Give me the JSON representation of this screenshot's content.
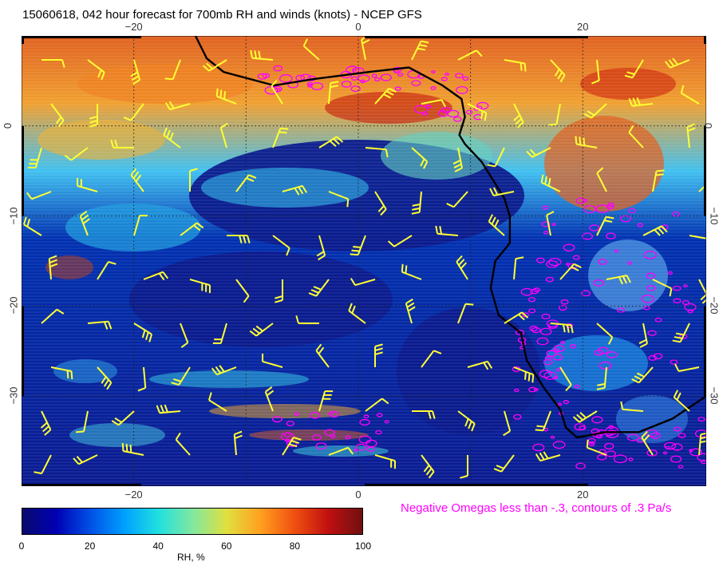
{
  "title": "15060618, 042 hour forecast for 700mb RH and winds (knots) - NCEP GFS",
  "map": {
    "lon_range": [
      -30,
      31
    ],
    "lat_range": [
      -40,
      10
    ],
    "lon_ticks": [
      {
        "value": -20,
        "label": "−20"
      },
      {
        "value": 0,
        "label": "0"
      },
      {
        "value": 20,
        "label": "20"
      }
    ],
    "lat_ticks": [
      {
        "value": 0,
        "label": "0"
      },
      {
        "value": -10,
        "label": "−10"
      },
      {
        "value": -20,
        "label": "−20"
      },
      {
        "value": -30,
        "label": "−30"
      }
    ],
    "gridlines": "dotted",
    "coastline": "Africa (west coast)",
    "wind_barb_color": "#ffff33",
    "omega_contour_color": "#ff00ff"
  },
  "legend": {
    "omega_note": "Negative Omegas less than -.3, contours of .3 Pa/s"
  },
  "colorbar": {
    "label": "RH, %",
    "ticks": [
      "0",
      "20",
      "40",
      "60",
      "80",
      "100"
    ],
    "min": 0,
    "max": 100,
    "colors": [
      "#0a0a6e",
      "#0000b4",
      "#0050e6",
      "#00a0ff",
      "#20e0e0",
      "#80e8a0",
      "#e0e040",
      "#ffa020",
      "#f05010",
      "#c01010",
      "#701010"
    ]
  }
}
